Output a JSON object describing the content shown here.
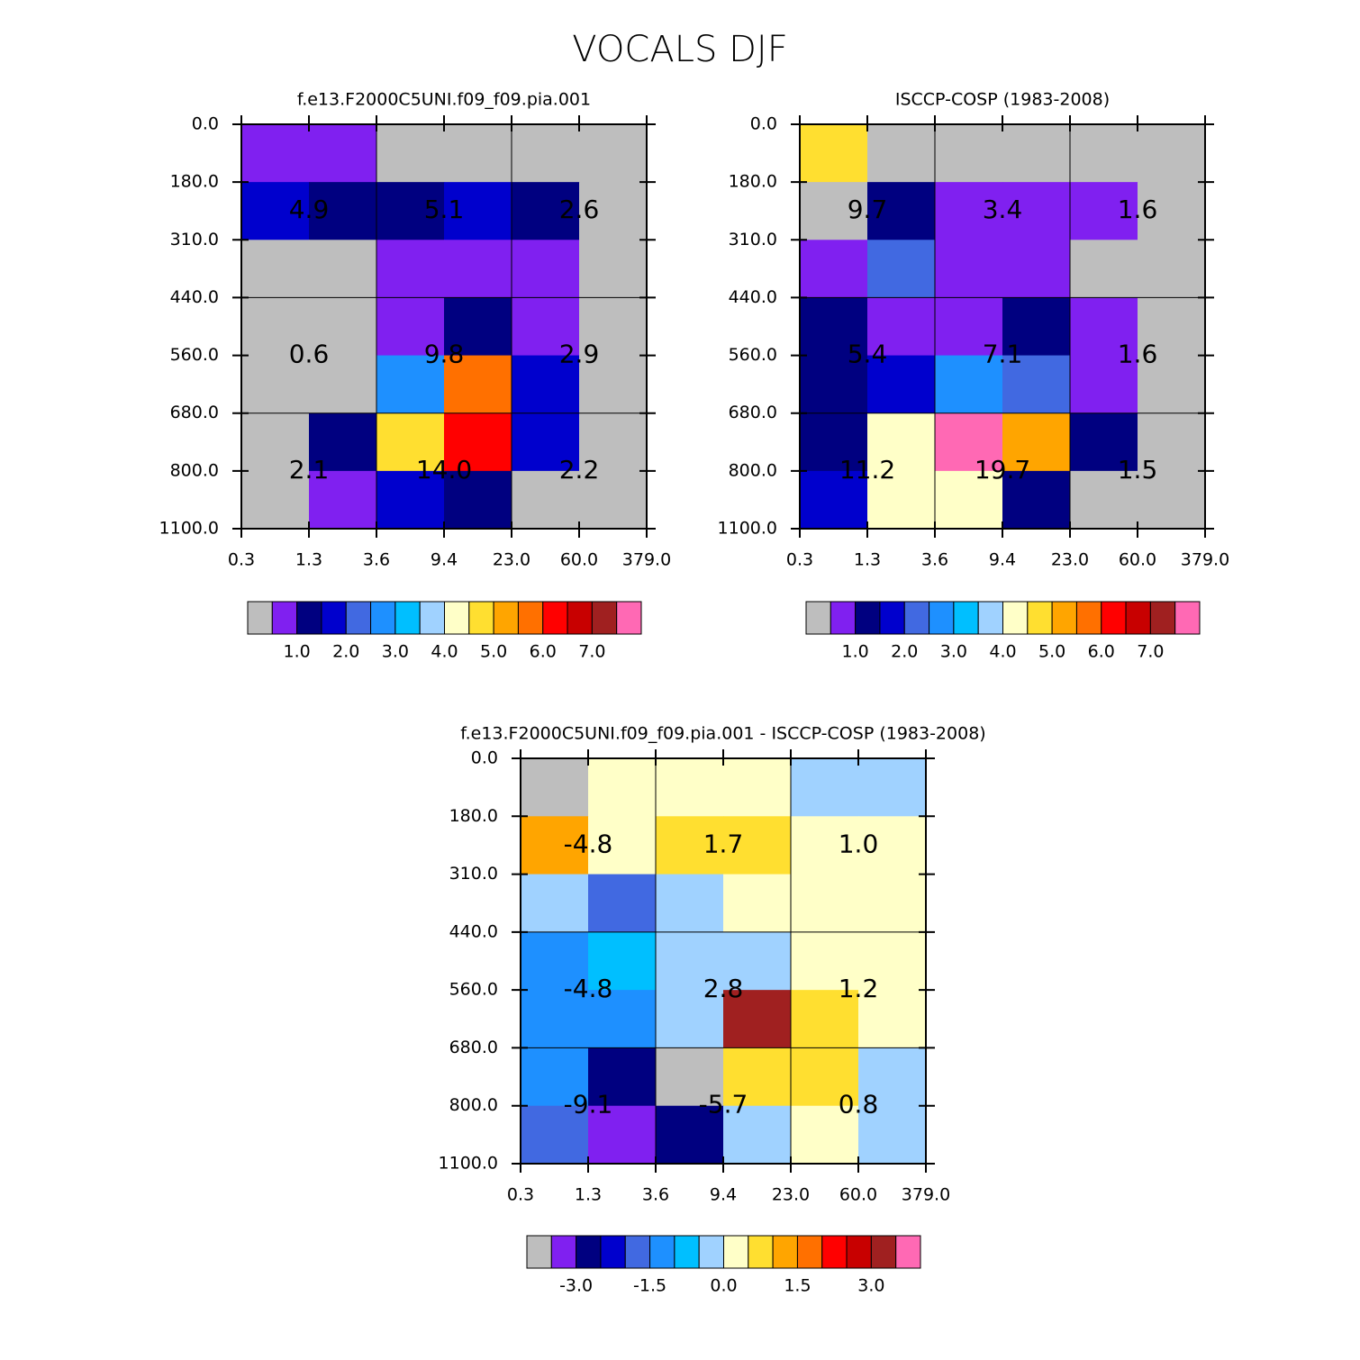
{
  "title": "VOCALS DJF",
  "chart_data": [
    {
      "type": "heatmap",
      "title": "f.e13.F2000C5UNI.f09_f09.pia.001",
      "xticks": [
        0.3,
        1.3,
        3.6,
        9.4,
        {
          "value": 23,
          "label": "23.0"
        },
        {
          "value": 60,
          "label": "60.0"
        },
        {
          "value": 379,
          "label": "379.0"
        }
      ],
      "yticks": [
        {
          "value": 0,
          "label": "0.0"
        },
        {
          "value": 180,
          "label": "180.0"
        },
        {
          "value": 310,
          "label": "310.0"
        },
        {
          "value": 440,
          "label": "440.0"
        },
        {
          "value": 560,
          "label": "560.0"
        },
        {
          "value": 680,
          "label": "680.0"
        },
        {
          "value": 800,
          "label": "800.0"
        },
        {
          "value": 1100,
          "label": "1100.0"
        }
      ],
      "values": [
        [
          0.75,
          0.75,
          0,
          0,
          0,
          0
        ],
        [
          1.75,
          1.25,
          1.25,
          1.75,
          1.25,
          0
        ],
        [
          0,
          0,
          0.75,
          0.75,
          0.75,
          0
        ],
        [
          0,
          0,
          0.75,
          1.25,
          0.75,
          0
        ],
        [
          0,
          0,
          2.75,
          5.75,
          1.75,
          0
        ],
        [
          0,
          1.25,
          4.75,
          6.25,
          1.75,
          0
        ],
        [
          0,
          0.75,
          1.75,
          1.25,
          0,
          0
        ]
      ],
      "cell_labels": [
        [
          "4.9",
          "5.1",
          "2.6"
        ],
        [
          "0.6",
          "9.8",
          "2.9"
        ],
        [
          "2.1",
          "14.0",
          "2.2"
        ]
      ],
      "levels": [
        0.5,
        1.0,
        1.5,
        2.0,
        2.5,
        3.0,
        3.5,
        4.0,
        4.5,
        5.0,
        5.5,
        6.0,
        6.5,
        7.0,
        7.5
      ],
      "colors": [
        "#bebebe",
        "#8020f0",
        "#000080",
        "#0000cd",
        "#4169e1",
        "#1e90ff",
        "#00bfff",
        "#a0d2ff",
        "#ffffc8",
        "#ffdf30",
        "#ffa500",
        "#ff7000",
        "#ff0000",
        "#c80000",
        "#a02020",
        "#ff69b4"
      ],
      "colorbar_ticks": [
        {
          "value": 1,
          "label": "1.0"
        },
        {
          "value": 2,
          "label": "2.0"
        },
        {
          "value": 3,
          "label": "3.0"
        },
        {
          "value": 4,
          "label": "4.0"
        },
        {
          "value": 5,
          "label": "5.0"
        },
        {
          "value": 6,
          "label": "6.0"
        },
        {
          "value": 7,
          "label": "7.0"
        }
      ]
    },
    {
      "type": "heatmap",
      "title": "ISCCP-COSP (1983-2008)",
      "xticks": [
        0.3,
        1.3,
        3.6,
        9.4,
        {
          "value": 23,
          "label": "23.0"
        },
        {
          "value": 60,
          "label": "60.0"
        },
        {
          "value": 379,
          "label": "379.0"
        }
      ],
      "yticks": [
        {
          "value": 0,
          "label": "0.0"
        },
        {
          "value": 180,
          "label": "180.0"
        },
        {
          "value": 310,
          "label": "310.0"
        },
        {
          "value": 440,
          "label": "440.0"
        },
        {
          "value": 560,
          "label": "560.0"
        },
        {
          "value": 680,
          "label": "680.0"
        },
        {
          "value": 800,
          "label": "800.0"
        },
        {
          "value": 1100,
          "label": "1100.0"
        }
      ],
      "values": [
        [
          4.75,
          0,
          0,
          0,
          0,
          0
        ],
        [
          0,
          1.25,
          0.75,
          0.75,
          0.75,
          0
        ],
        [
          0.75,
          2.25,
          0.75,
          0.75,
          0,
          0
        ],
        [
          1.25,
          0.75,
          0.75,
          1.25,
          0.75,
          0
        ],
        [
          1.25,
          1.75,
          2.75,
          2.25,
          0.75,
          0
        ],
        [
          1.25,
          4.25,
          7.75,
          5.25,
          1.25,
          0
        ],
        [
          1.75,
          4.25,
          4.25,
          1.25,
          0,
          0
        ]
      ],
      "cell_labels": [
        [
          "9.7",
          "3.4",
          "1.6"
        ],
        [
          "5.4",
          "7.1",
          "1.6"
        ],
        [
          "11.2",
          "19.7",
          "1.5"
        ]
      ],
      "levels": [
        0.5,
        1.0,
        1.5,
        2.0,
        2.5,
        3.0,
        3.5,
        4.0,
        4.5,
        5.0,
        5.5,
        6.0,
        6.5,
        7.0,
        7.5
      ],
      "colors": [
        "#bebebe",
        "#8020f0",
        "#000080",
        "#0000cd",
        "#4169e1",
        "#1e90ff",
        "#00bfff",
        "#a0d2ff",
        "#ffffc8",
        "#ffdf30",
        "#ffa500",
        "#ff7000",
        "#ff0000",
        "#c80000",
        "#a02020",
        "#ff69b4"
      ],
      "colorbar_ticks": [
        {
          "value": 1,
          "label": "1.0"
        },
        {
          "value": 2,
          "label": "2.0"
        },
        {
          "value": 3,
          "label": "3.0"
        },
        {
          "value": 4,
          "label": "4.0"
        },
        {
          "value": 5,
          "label": "5.0"
        },
        {
          "value": 6,
          "label": "6.0"
        },
        {
          "value": 7,
          "label": "7.0"
        }
      ]
    },
    {
      "type": "heatmap",
      "title": "f.e13.F2000C5UNI.f09_f09.pia.001 - ISCCP-COSP (1983-2008)",
      "xticks": [
        0.3,
        1.3,
        3.6,
        9.4,
        {
          "value": 23,
          "label": "23.0"
        },
        {
          "value": 60,
          "label": "60.0"
        },
        {
          "value": 379,
          "label": "379.0"
        }
      ],
      "yticks": [
        {
          "value": 0,
          "label": "0.0"
        },
        {
          "value": 180,
          "label": "180.0"
        },
        {
          "value": 310,
          "label": "310.0"
        },
        {
          "value": 440,
          "label": "440.0"
        },
        {
          "value": 560,
          "label": "560.0"
        },
        {
          "value": 680,
          "label": "680.0"
        },
        {
          "value": 800,
          "label": "800.0"
        },
        {
          "value": 1100,
          "label": "1100.0"
        }
      ],
      "values": [
        [
          -4,
          0.25,
          0.25,
          0.25,
          -0.25,
          -0.25
        ],
        [
          1.25,
          0.25,
          0.75,
          0.75,
          0.25,
          0.25
        ],
        [
          -0.25,
          -1.75,
          -0.25,
          0.25,
          0.25,
          0.25
        ],
        [
          -1.25,
          -0.75,
          -0.25,
          -0.25,
          0.25,
          0.25
        ],
        [
          -1.25,
          -1.25,
          -0.25,
          3.25,
          0.75,
          0.25
        ],
        [
          -1.25,
          -2.75,
          -4,
          0.75,
          0.75,
          -0.25
        ],
        [
          -1.75,
          -3.25,
          -2.75,
          -0.25,
          0.25,
          -0.25
        ]
      ],
      "cell_labels": [
        [
          "-4.8",
          "1.7",
          "1.0"
        ],
        [
          "-4.8",
          "2.8",
          "1.2"
        ],
        [
          "-9.1",
          "-5.7",
          "0.8"
        ]
      ],
      "levels": [
        -3.5,
        -3.0,
        -2.5,
        -2.0,
        -1.5,
        -1.0,
        -0.5,
        0.0,
        0.5,
        1.0,
        1.5,
        2.0,
        2.5,
        3.0,
        3.5
      ],
      "colors": [
        "#bebebe",
        "#8020f0",
        "#000080",
        "#0000cd",
        "#4169e1",
        "#1e90ff",
        "#00bfff",
        "#a0d2ff",
        "#ffffc8",
        "#ffdf30",
        "#ffa500",
        "#ff7000",
        "#ff0000",
        "#c80000",
        "#a02020",
        "#ff69b4"
      ],
      "colorbar_ticks": [
        {
          "value": -3,
          "label": "-3.0"
        },
        {
          "value": -1.5,
          "label": "-1.5"
        },
        {
          "value": 0,
          "label": "0.0"
        },
        {
          "value": 1.5,
          "label": "1.5"
        },
        {
          "value": 3,
          "label": "3.0"
        }
      ]
    }
  ]
}
